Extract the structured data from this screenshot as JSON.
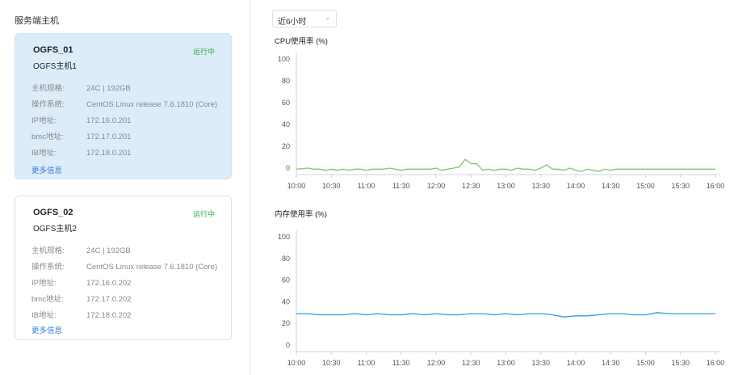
{
  "sidebar": {
    "title": "服务端主机",
    "hosts": [
      {
        "id": "OGFS_01",
        "name": "OGFS主机1",
        "status": "运行中",
        "selected": true,
        "fields": [
          {
            "label": "主机规格:",
            "value": "24C  |  192GB"
          },
          {
            "label": "操作系统:",
            "value": "CentOS Linux release 7.6.1810 (Core)"
          },
          {
            "label": "IP地址:",
            "value": "172.16.0.201"
          },
          {
            "label": "bmc地址:",
            "value": "172.17.0.201"
          },
          {
            "label": "IB地址:",
            "value": "172.18.0.201"
          }
        ],
        "more_label": "更多信息"
      },
      {
        "id": "OGFS_02",
        "name": "OGFS主机2",
        "status": "运行中",
        "selected": false,
        "fields": [
          {
            "label": "主机规格:",
            "value": "24C  |  192GB"
          },
          {
            "label": "操作系统:",
            "value": "CentOS Linux release 7.6.1810 (Core)"
          },
          {
            "label": "IP地址:",
            "value": "172.16.0.202"
          },
          {
            "label": "bmc地址:",
            "value": "172.17.0.202"
          },
          {
            "label": "IB地址:",
            "value": "172.18.0.202"
          }
        ],
        "more_label": "更多信息"
      }
    ]
  },
  "time_range": {
    "selected": "近6小时",
    "icon": "chevron-down-icon"
  },
  "colors": {
    "cpu_line": "#7cc86a",
    "mem_line": "#2f9be0",
    "status": "#2ea84a",
    "link": "#2f7ed8",
    "selected_card": "#ddecf9"
  },
  "chart_data": [
    {
      "type": "line",
      "title": "CPU使用率 (%)",
      "x_ticks": [
        "10:00",
        "10:30",
        "11:00",
        "11:30",
        "12:00",
        "12:30",
        "13:00",
        "13:30",
        "14:00",
        "14:30",
        "15:00",
        "15:30",
        "16:00"
      ],
      "y_ticks": [
        0,
        20,
        40,
        60,
        80,
        100
      ],
      "ylim": [
        0,
        100
      ],
      "grid": false,
      "series": [
        {
          "x_minutes_from_start": [
            0,
            10,
            15,
            20,
            25,
            30,
            35,
            40,
            45,
            50,
            55,
            60,
            65,
            70,
            75,
            80,
            85,
            90,
            95,
            100,
            105,
            110,
            115,
            120,
            125,
            130,
            135,
            140,
            145,
            150,
            155,
            160,
            165,
            170,
            175,
            180,
            185,
            190,
            195,
            200,
            205,
            210,
            215,
            220,
            225,
            230,
            235,
            240,
            245,
            250,
            255,
            260,
            265,
            270,
            275,
            280,
            285,
            290,
            295,
            300,
            310,
            320,
            330,
            340,
            350,
            360
          ],
          "values": [
            -1,
            0,
            -1,
            -1,
            -2,
            -1,
            -2,
            -1,
            -2,
            -1,
            -1,
            -2,
            -1,
            -1,
            -1,
            0,
            -1,
            -2,
            -1,
            -1,
            -1,
            -1,
            -1,
            0,
            -2,
            -1,
            0,
            1,
            8,
            4,
            4,
            -2,
            -1,
            -2,
            -1,
            -1,
            -2,
            0,
            -1,
            -1,
            -2,
            0,
            3,
            -1,
            -1,
            -2,
            0,
            -2,
            -3,
            -1,
            -2,
            -3,
            -1,
            -2,
            -1,
            -1,
            -1,
            -1,
            -1,
            -1,
            -1,
            -1,
            -1,
            -1,
            -1,
            -1
          ]
        }
      ]
    },
    {
      "type": "line",
      "title": "内存使用率 (%)",
      "x_ticks": [
        "10:00",
        "10:30",
        "11:00",
        "11:30",
        "12:00",
        "12:30",
        "13:00",
        "13:30",
        "14:00",
        "14:30",
        "15:00",
        "15:30",
        "16:00"
      ],
      "y_ticks": [
        0,
        20,
        40,
        60,
        80,
        100
      ],
      "ylim": [
        0,
        100
      ],
      "grid": false,
      "series": [
        {
          "x_minutes_from_start": [
            0,
            10,
            20,
            30,
            40,
            50,
            60,
            70,
            80,
            90,
            100,
            110,
            120,
            130,
            140,
            150,
            160,
            170,
            180,
            190,
            200,
            210,
            220,
            230,
            240,
            250,
            260,
            270,
            280,
            290,
            300,
            310,
            320,
            330,
            340,
            350,
            360
          ],
          "values": [
            29,
            29,
            28,
            28,
            28,
            29,
            28,
            29,
            28,
            28,
            29,
            28,
            29,
            28,
            28,
            29,
            29,
            28,
            29,
            28,
            29,
            29,
            28,
            26,
            27,
            27,
            28,
            29,
            29,
            28,
            28,
            30,
            29,
            29,
            29,
            29,
            29
          ]
        }
      ]
    }
  ]
}
